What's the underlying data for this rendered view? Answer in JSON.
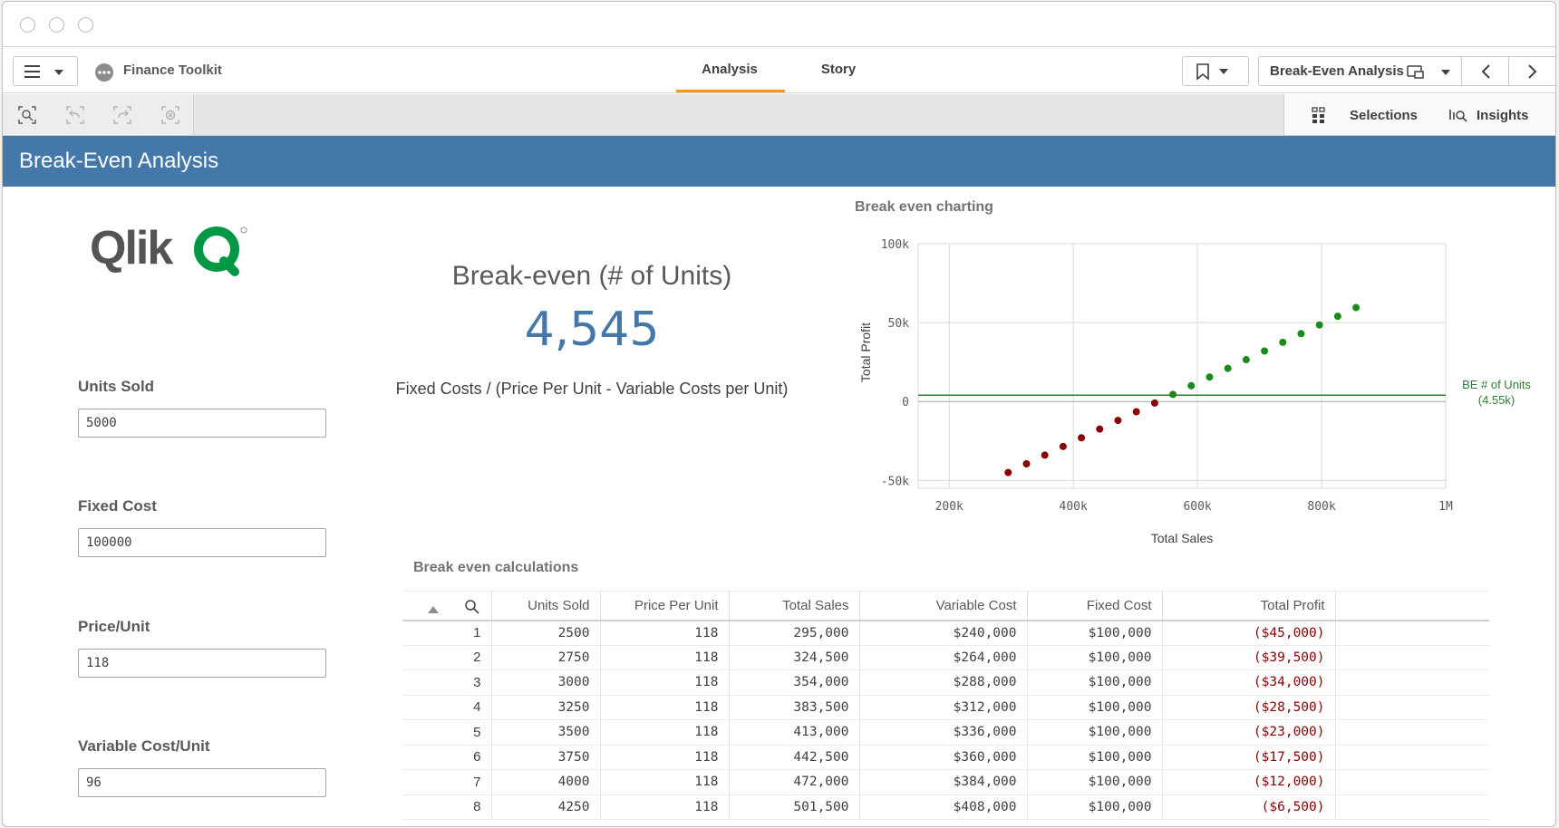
{
  "app": {
    "name": "Finance Toolkit",
    "tabs": [
      {
        "label": "Analysis",
        "active": true
      },
      {
        "label": "Story",
        "active": false
      }
    ],
    "sheet_selector": "Break-Even Analysis",
    "selections_label": "Selections",
    "insights_label": "Insights",
    "accent_color": "#f8981d"
  },
  "banner": {
    "title": "Break-Even Analysis",
    "color": "#4477aa"
  },
  "logo": {
    "text": "Qlik",
    "brand_color": "#009845"
  },
  "inputs": [
    {
      "label": "Units Sold",
      "value": "5000"
    },
    {
      "label": "Fixed Cost",
      "value": "100000"
    },
    {
      "label": "Price/Unit",
      "value": "118"
    },
    {
      "label": "Variable Cost/Unit",
      "value": "96"
    }
  ],
  "kpi": {
    "title": "Break-even (# of Units)",
    "value": "4,545",
    "formula": "Fixed Costs / (Price Per Unit - Variable Costs per Unit)"
  },
  "chart_title": "Break even charting",
  "table_title": "Break even calculations",
  "chart_data": {
    "type": "scatter",
    "xlabel": "Total Sales",
    "ylabel": "Total Profit",
    "xlim": [
      150000,
      1000000
    ],
    "ylim": [
      -55000,
      100000
    ],
    "x_ticks": [
      "200k",
      "400k",
      "600k",
      "800k",
      "1M"
    ],
    "x_tick_values": [
      200000,
      400000,
      600000,
      800000,
      1000000
    ],
    "y_ticks": [
      "100k",
      "50k",
      "0",
      "-50k"
    ],
    "y_tick_values": [
      100000,
      50000,
      0,
      -50000
    ],
    "grid": true,
    "reference_line": {
      "label": "BE # of Units",
      "sublabel": "(4.55k)",
      "y": 4000,
      "color": "#2e7d32"
    },
    "points": [
      {
        "x": 295000,
        "y": -45000
      },
      {
        "x": 324500,
        "y": -39500
      },
      {
        "x": 354000,
        "y": -34000
      },
      {
        "x": 383500,
        "y": -28500
      },
      {
        "x": 413000,
        "y": -23000
      },
      {
        "x": 442500,
        "y": -17500
      },
      {
        "x": 472000,
        "y": -12000
      },
      {
        "x": 501500,
        "y": -6500
      },
      {
        "x": 531000,
        "y": -1000
      },
      {
        "x": 560500,
        "y": 4500
      },
      {
        "x": 590000,
        "y": 10000
      },
      {
        "x": 619500,
        "y": 15500
      },
      {
        "x": 649000,
        "y": 21000
      },
      {
        "x": 678500,
        "y": 26500
      },
      {
        "x": 708000,
        "y": 32000
      },
      {
        "x": 737500,
        "y": 37500
      },
      {
        "x": 767000,
        "y": 43000
      },
      {
        "x": 796500,
        "y": 48500
      },
      {
        "x": 826000,
        "y": 54000
      },
      {
        "x": 855500,
        "y": 59500
      }
    ],
    "negative_color": "#8b0000",
    "positive_color": "#1a8a1a"
  },
  "table": {
    "columns": [
      "",
      "Units Sold",
      "Price Per Unit",
      "Total Sales",
      "Variable Cost",
      "Fixed Cost",
      "Total Profit"
    ],
    "rows": [
      [
        "1",
        "2500",
        "118",
        "295,000",
        "$240,000",
        "$100,000",
        "($45,000)"
      ],
      [
        "2",
        "2750",
        "118",
        "324,500",
        "$264,000",
        "$100,000",
        "($39,500)"
      ],
      [
        "3",
        "3000",
        "118",
        "354,000",
        "$288,000",
        "$100,000",
        "($34,000)"
      ],
      [
        "4",
        "3250",
        "118",
        "383,500",
        "$312,000",
        "$100,000",
        "($28,500)"
      ],
      [
        "5",
        "3500",
        "118",
        "413,000",
        "$336,000",
        "$100,000",
        "($23,000)"
      ],
      [
        "6",
        "3750",
        "118",
        "442,500",
        "$360,000",
        "$100,000",
        "($17,500)"
      ],
      [
        "7",
        "4000",
        "118",
        "472,000",
        "$384,000",
        "$100,000",
        "($12,000)"
      ],
      [
        "8",
        "4250",
        "118",
        "501,500",
        "$408,000",
        "$100,000",
        "($6,500)"
      ]
    ]
  }
}
